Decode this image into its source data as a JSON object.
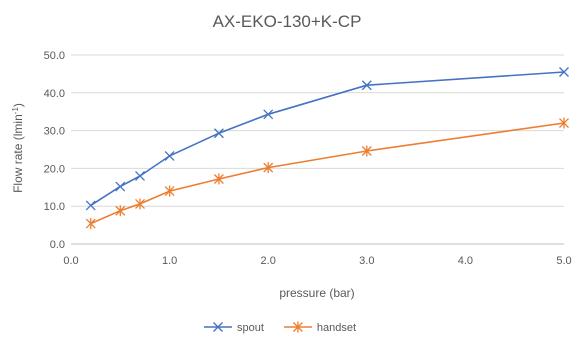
{
  "chart_data": {
    "type": "line",
    "title": "AX-EKO-130+K-CP",
    "xlabel": "pressure (bar)",
    "ylabel": "Flow rate (lmin",
    "ylabel_superscript": "-1",
    "ylabel_suffix": ")",
    "xlim": [
      0.0,
      5.0
    ],
    "ylim": [
      0.0,
      50.0
    ],
    "x_ticks": [
      "0.0",
      "1.0",
      "2.0",
      "3.0",
      "4.0",
      "5.0"
    ],
    "y_ticks": [
      "0.0",
      "10.0",
      "20.0",
      "30.0",
      "40.0",
      "50.0"
    ],
    "grid": "horizontal",
    "legend_position": "bottom",
    "series": [
      {
        "name": "spout",
        "color": "#4472C4",
        "marker": "x",
        "points": [
          {
            "x": 0.2,
            "y": 10.2
          },
          {
            "x": 0.5,
            "y": 15.2
          },
          {
            "x": 0.7,
            "y": 18.0
          },
          {
            "x": 1.0,
            "y": 23.3
          },
          {
            "x": 1.5,
            "y": 29.3
          },
          {
            "x": 2.0,
            "y": 34.3
          },
          {
            "x": 3.0,
            "y": 42.0
          },
          {
            "x": 5.0,
            "y": 45.5
          }
        ]
      },
      {
        "name": "handset",
        "color": "#ED7D31",
        "marker": "asterisk",
        "points": [
          {
            "x": 0.2,
            "y": 5.4
          },
          {
            "x": 0.5,
            "y": 8.8
          },
          {
            "x": 0.7,
            "y": 10.6
          },
          {
            "x": 1.0,
            "y": 14.0
          },
          {
            "x": 1.5,
            "y": 17.2
          },
          {
            "x": 2.0,
            "y": 20.2
          },
          {
            "x": 3.0,
            "y": 24.6
          },
          {
            "x": 5.0,
            "y": 32.0
          }
        ]
      }
    ]
  }
}
